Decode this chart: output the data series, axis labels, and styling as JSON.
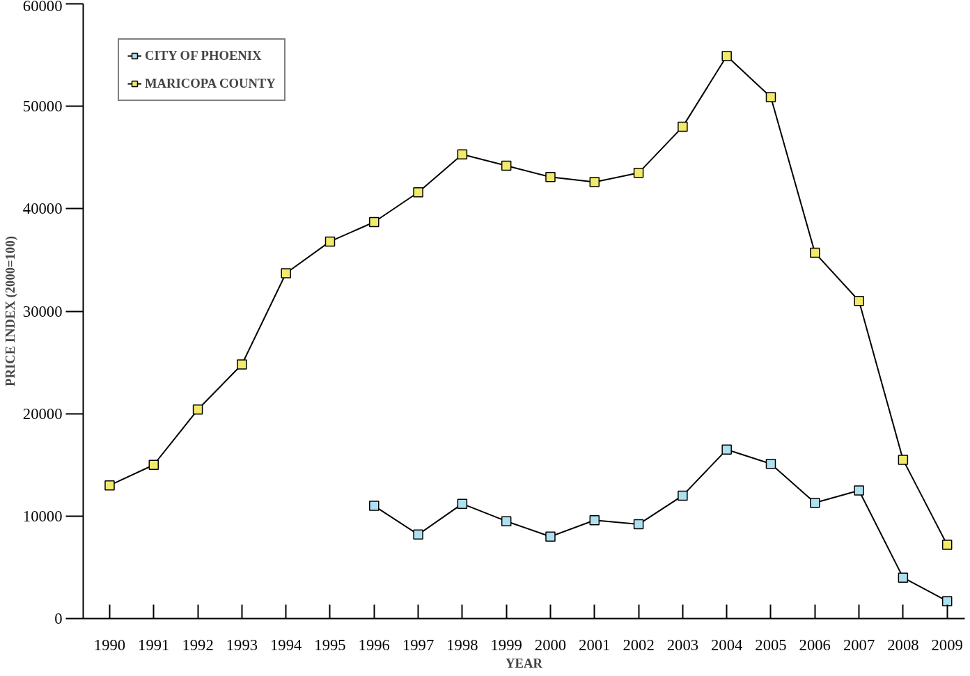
{
  "chart_data": {
    "type": "line",
    "xlabel": "YEAR",
    "ylabel": "PRICE INDEX (2000=100)",
    "categories": [
      "1990",
      "1991",
      "1992",
      "1993",
      "1994",
      "1995",
      "1996",
      "1997",
      "1998",
      "1999",
      "2000",
      "2001",
      "2002",
      "2003",
      "2004",
      "2005",
      "2006",
      "2007",
      "2008",
      "2009"
    ],
    "series": [
      {
        "name": "CITY OF PHOENIX",
        "color": "#aee0f0",
        "values": [
          null,
          null,
          null,
          null,
          null,
          null,
          11000,
          8200,
          11200,
          9500,
          8000,
          9600,
          9200,
          12000,
          16500,
          15100,
          11300,
          12500,
          4000,
          1700
        ]
      },
      {
        "name": "MARICOPA COUNTY",
        "color": "#f2ea6a",
        "values": [
          13000,
          15000,
          20400,
          24800,
          33700,
          36800,
          38700,
          41600,
          45300,
          44200,
          43100,
          42600,
          43500,
          48000,
          54900,
          50900,
          35700,
          31000,
          15500,
          7200
        ]
      }
    ],
    "ylim": [
      0,
      60000
    ],
    "yticks": [
      0,
      10000,
      20000,
      30000,
      40000,
      50000,
      60000
    ],
    "grid": false,
    "legend": "top left",
    "marker": "square",
    "line_style": "solid"
  }
}
